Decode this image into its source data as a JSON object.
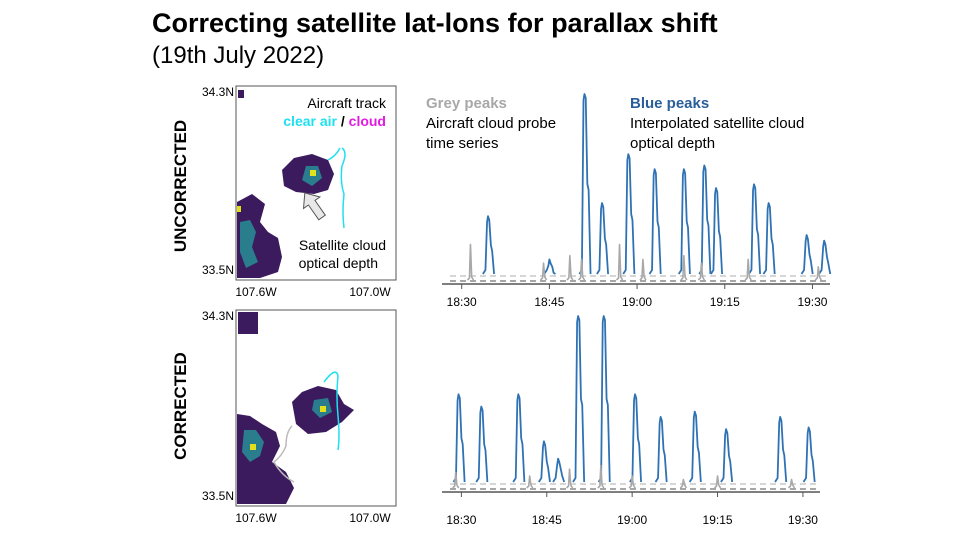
{
  "title": "Correcting satellite lat-lons for parallax shift",
  "subtitle": "(19th July 2022)",
  "rows": {
    "top": "UNCORRECTED",
    "bottom": "CORRECTED"
  },
  "map_annotations": {
    "aircraft_track": "Aircraft track",
    "clear_air": "clear air",
    "separator": "/",
    "cloud": "cloud",
    "satellite_line1": "Satellite cloud",
    "satellite_line2": "optical depth"
  },
  "series_legend": {
    "grey_title": "Grey peaks",
    "grey_line1": "Aircraft cloud probe",
    "grey_line2": "time series",
    "blue_title": "Blue peaks",
    "blue_line1": "Interpolated satellite cloud",
    "blue_line2": "optical depth"
  },
  "colors": {
    "clear_air": "#1fe0ef",
    "cloud": "#e21be2",
    "grey_series": "#a8a8a8",
    "blue_series": "#2f72b4",
    "blue_title": "#2a5e9a",
    "grey_title": "#a8a8a8",
    "map_dark": "#3b1b5e",
    "map_mid": "#2a7d8c",
    "map_bright": "#e2e01c"
  },
  "chart_data": [
    {
      "type": "heatmap",
      "name": "uncorrected_map",
      "y_ticks": [
        "34.3N",
        "33.5N"
      ],
      "x_ticks": [
        "107.6W",
        "107.0W"
      ],
      "xlim": [
        -107.6,
        -107.0
      ],
      "ylim": [
        33.5,
        34.3
      ]
    },
    {
      "type": "line",
      "name": "uncorrected_timeseries",
      "x_ticks": [
        "18:30",
        "18:45",
        "19:00",
        "19:15",
        "19:30"
      ],
      "xlim_minutes": [
        0,
        65
      ],
      "series": [
        {
          "color_key": "blue_series",
          "peaks": [
            {
              "t": 6.5,
              "h": 0.35
            },
            {
              "t": 17,
              "h": 0.12
            },
            {
              "t": 23,
              "h": 1.0
            },
            {
              "t": 26,
              "h": 0.42
            },
            {
              "t": 30.5,
              "h": 0.68
            },
            {
              "t": 35,
              "h": 0.6
            },
            {
              "t": 40,
              "h": 0.6
            },
            {
              "t": 43.5,
              "h": 0.62
            },
            {
              "t": 45.5,
              "h": 0.5
            },
            {
              "t": 52,
              "h": 0.52
            },
            {
              "t": 54.5,
              "h": 0.42
            },
            {
              "t": 61,
              "h": 0.25
            },
            {
              "t": 64,
              "h": 0.22
            }
          ]
        },
        {
          "color_key": "grey_series",
          "peaks": [
            {
              "t": 3.5,
              "h": 0.2
            },
            {
              "t": 16,
              "h": 0.1
            },
            {
              "t": 20.5,
              "h": 0.14
            },
            {
              "t": 22.5,
              "h": 0.12
            },
            {
              "t": 29,
              "h": 0.2
            },
            {
              "t": 33,
              "h": 0.12
            },
            {
              "t": 40,
              "h": 0.14
            },
            {
              "t": 43,
              "h": 0.1
            },
            {
              "t": 51,
              "h": 0.12
            },
            {
              "t": 63,
              "h": 0.08
            }
          ]
        }
      ]
    },
    {
      "type": "heatmap",
      "name": "corrected_map",
      "y_ticks": [
        "34.3N",
        "33.5N"
      ],
      "x_ticks": [
        "107.6W",
        "107.0W"
      ],
      "xlim": [
        -107.6,
        -107.0
      ],
      "ylim": [
        33.5,
        34.3
      ]
    },
    {
      "type": "line",
      "name": "corrected_timeseries",
      "x_ticks": [
        "18:30",
        "18:45",
        "19:00",
        "19:15",
        "19:30"
      ],
      "xlim_minutes": [
        0,
        65
      ],
      "series": [
        {
          "color_key": "blue_series",
          "peaks": [
            {
              "t": 1.5,
              "h": 0.55
            },
            {
              "t": 5.5,
              "h": 0.48
            },
            {
              "t": 12,
              "h": 0.55
            },
            {
              "t": 16.5,
              "h": 0.28
            },
            {
              "t": 19,
              "h": 0.18
            },
            {
              "t": 22.5,
              "h": 1.0
            },
            {
              "t": 27,
              "h": 1.0
            },
            {
              "t": 32.5,
              "h": 0.55
            },
            {
              "t": 37,
              "h": 0.42
            },
            {
              "t": 43,
              "h": 0.45
            },
            {
              "t": 48.5,
              "h": 0.35
            },
            {
              "t": 58,
              "h": 0.42
            },
            {
              "t": 63,
              "h": 0.36
            }
          ]
        },
        {
          "color_key": "grey_series",
          "peaks": [
            {
              "t": 1,
              "h": 0.1
            },
            {
              "t": 14,
              "h": 0.08
            },
            {
              "t": 21,
              "h": 0.12
            },
            {
              "t": 26.5,
              "h": 0.14
            },
            {
              "t": 32,
              "h": 0.08
            },
            {
              "t": 41,
              "h": 0.06
            },
            {
              "t": 47,
              "h": 0.08
            },
            {
              "t": 60,
              "h": 0.06
            }
          ]
        }
      ]
    }
  ]
}
